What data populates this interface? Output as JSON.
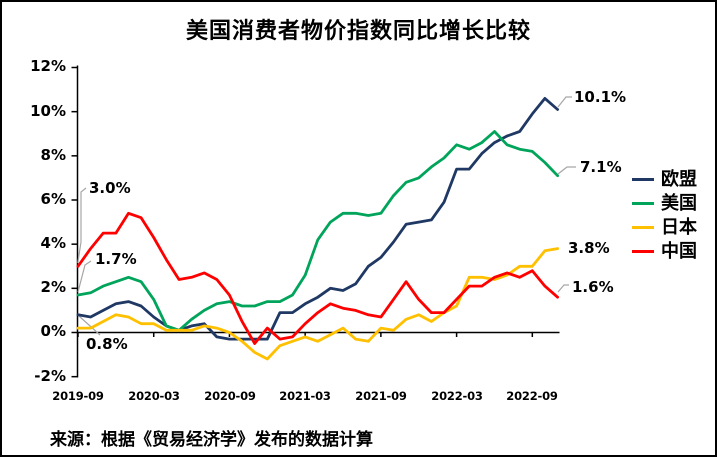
{
  "source_note": "来源：根据《贸易经济学》发布的数据计算",
  "colors": {
    "eu": "#1F3864",
    "us": "#00A45A",
    "jp": "#FFC000",
    "cn": "#FF0000",
    "leader_line": "#A6A6A6",
    "axis": "#000000",
    "background": "#FFFFFF"
  },
  "annotations": {
    "cn_start": "3.0%",
    "us_start": "1.7%",
    "eu_start": "0.8%",
    "eu_end": "10.1%",
    "us_end": "7.1%",
    "jp_end": "3.8%",
    "cn_end": "1.6%"
  },
  "chart_data": {
    "type": "line",
    "title": "美国消费者物价指数同比增长比较",
    "xlabel": "",
    "ylabel": "",
    "ylim": [
      -2,
      12
    ],
    "y_tick_step": 2,
    "grid": false,
    "legend_position": "right-middle",
    "y_tick_labels": [
      "12%",
      "10%",
      "8%",
      "6%",
      "4%",
      "2%",
      "0%",
      "-2%"
    ],
    "x_tick_labels": [
      "2019-09",
      "2020-03",
      "2020-09",
      "2021-03",
      "2021-09",
      "2022-03",
      "2022-09"
    ],
    "x": [
      "2019-09",
      "2019-10",
      "2019-11",
      "2019-12",
      "2020-01",
      "2020-02",
      "2020-03",
      "2020-04",
      "2020-05",
      "2020-06",
      "2020-07",
      "2020-08",
      "2020-09",
      "2020-10",
      "2020-11",
      "2020-12",
      "2021-01",
      "2021-02",
      "2021-03",
      "2021-04",
      "2021-05",
      "2021-06",
      "2021-07",
      "2021-08",
      "2021-09",
      "2021-10",
      "2021-11",
      "2021-12",
      "2022-01",
      "2022-02",
      "2022-03",
      "2022-04",
      "2022-05",
      "2022-06",
      "2022-07",
      "2022-08",
      "2022-09",
      "2022-10",
      "2022-11"
    ],
    "series": [
      {
        "name": "欧盟",
        "color": "#1F3864",
        "start_label": "0.8%",
        "end_label": "10.1%",
        "values": [
          0.8,
          0.7,
          1.0,
          1.3,
          1.4,
          1.2,
          0.7,
          0.3,
          0.1,
          0.3,
          0.4,
          -0.2,
          -0.3,
          -0.3,
          -0.3,
          -0.3,
          0.9,
          0.9,
          1.3,
          1.6,
          2.0,
          1.9,
          2.2,
          3.0,
          3.4,
          4.1,
          4.9,
          5.0,
          5.1,
          5.9,
          7.4,
          7.4,
          8.1,
          8.6,
          8.9,
          9.1,
          9.9,
          10.6,
          10.1
        ]
      },
      {
        "name": "美国",
        "color": "#00A45A",
        "start_label": "1.7%",
        "end_label": "7.1%",
        "values": [
          1.7,
          1.8,
          2.1,
          2.3,
          2.5,
          2.3,
          1.5,
          0.3,
          0.1,
          0.6,
          1.0,
          1.3,
          1.4,
          1.2,
          1.2,
          1.4,
          1.4,
          1.7,
          2.6,
          4.2,
          5.0,
          5.4,
          5.4,
          5.3,
          5.4,
          6.2,
          6.8,
          7.0,
          7.5,
          7.9,
          8.5,
          8.3,
          8.6,
          9.1,
          8.5,
          8.3,
          8.2,
          7.7,
          7.1
        ]
      },
      {
        "name": "日本",
        "color": "#FFC000",
        "start_label": "",
        "end_label": "3.8%",
        "values": [
          0.2,
          0.2,
          0.5,
          0.8,
          0.7,
          0.4,
          0.4,
          0.1,
          0.1,
          0.1,
          0.3,
          0.2,
          0.0,
          -0.4,
          -0.9,
          -1.2,
          -0.6,
          -0.4,
          -0.2,
          -0.4,
          -0.1,
          0.2,
          -0.3,
          -0.4,
          0.2,
          0.1,
          0.6,
          0.8,
          0.5,
          0.9,
          1.2,
          2.5,
          2.5,
          2.4,
          2.6,
          3.0,
          3.0,
          3.7,
          3.8
        ]
      },
      {
        "name": "中国",
        "color": "#FF0000",
        "start_label": "3.0%",
        "end_label": "1.6%",
        "values": [
          3.0,
          3.8,
          4.5,
          4.5,
          5.4,
          5.2,
          4.3,
          3.3,
          2.4,
          2.5,
          2.7,
          2.4,
          1.7,
          0.5,
          -0.5,
          0.2,
          -0.3,
          -0.2,
          0.4,
          0.9,
          1.3,
          1.1,
          1.0,
          0.8,
          0.7,
          1.5,
          2.3,
          1.5,
          0.9,
          0.9,
          1.5,
          2.1,
          2.1,
          2.5,
          2.7,
          2.5,
          2.8,
          2.1,
          1.6
        ]
      }
    ]
  }
}
